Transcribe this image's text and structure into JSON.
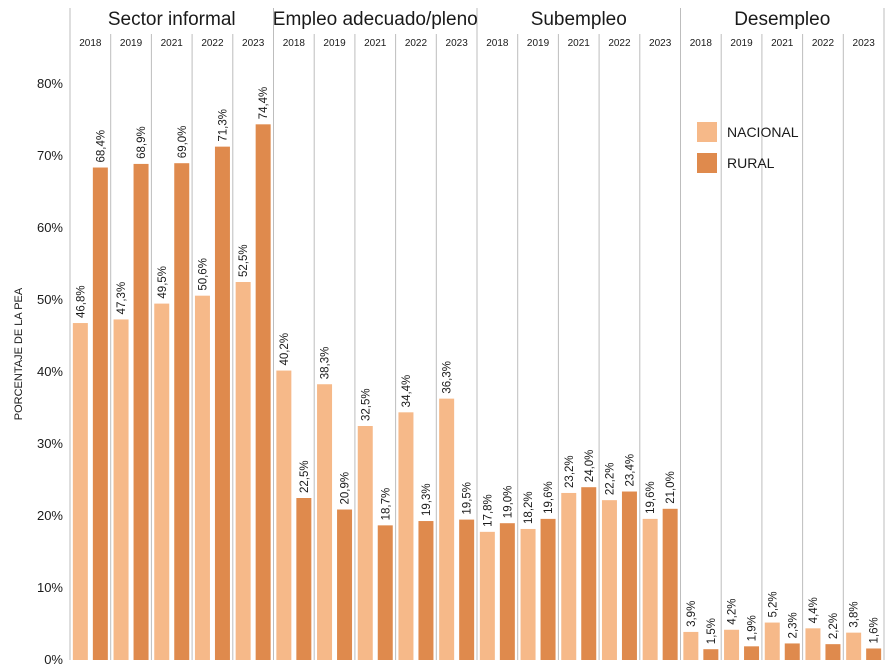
{
  "chart_data": {
    "type": "bar",
    "ylabel": "PORCENTAJE DE LA PEA",
    "ylim": [
      0,
      80
    ],
    "yticks": [
      "0%",
      "10%",
      "20%",
      "30%",
      "40%",
      "50%",
      "60%",
      "70%",
      "80%"
    ],
    "legend": {
      "position": "top-right",
      "items": [
        {
          "name": "NACIONAL",
          "color": "#f6b989"
        },
        {
          "name": "RURAL",
          "color": "#df8a4d"
        }
      ]
    },
    "groups": [
      {
        "title": "Sector informal",
        "years": [
          "2018",
          "2019",
          "2021",
          "2022",
          "2023"
        ],
        "nacional": [
          46.8,
          47.3,
          49.5,
          50.6,
          52.5
        ],
        "rural": [
          68.4,
          68.9,
          69.0,
          71.3,
          74.4
        ],
        "nacional_labels": [
          "46,8%",
          "47,3%",
          "49,5%",
          "50,6%",
          "52,5%"
        ],
        "rural_labels": [
          "68,4%",
          "68,9%",
          "69,0%",
          "71,3%",
          "74,4%"
        ]
      },
      {
        "title": "Empleo adecuado/pleno",
        "years": [
          "2018",
          "2019",
          "2021",
          "2022",
          "2023"
        ],
        "nacional": [
          40.2,
          38.3,
          32.5,
          34.4,
          36.3
        ],
        "rural": [
          22.5,
          20.9,
          18.7,
          19.3,
          19.5
        ],
        "nacional_labels": [
          "40,2%",
          "38,3%",
          "32,5%",
          "34,4%",
          "36,3%"
        ],
        "rural_labels": [
          "22,5%",
          "20,9%",
          "18,7%",
          "19,3%",
          "19,5%"
        ]
      },
      {
        "title": "Subempleo",
        "years": [
          "2018",
          "2019",
          "2021",
          "2022",
          "2023"
        ],
        "nacional": [
          17.8,
          18.2,
          23.2,
          22.2,
          19.6
        ],
        "rural": [
          19.0,
          19.6,
          24.0,
          23.4,
          21.0
        ],
        "nacional_labels": [
          "17,8%",
          "18,2%",
          "23,2%",
          "22,2%",
          "19,6%"
        ],
        "rural_labels": [
          "19,0%",
          "19,6%",
          "24,0%",
          "23,4%",
          "21,0%"
        ]
      },
      {
        "title": "Desempleo",
        "years": [
          "2018",
          "2019",
          "2021",
          "2022",
          "2023"
        ],
        "nacional": [
          3.9,
          4.2,
          5.2,
          4.4,
          3.8
        ],
        "rural": [
          1.5,
          1.9,
          2.3,
          2.2,
          1.6
        ],
        "nacional_labels": [
          "3,9%",
          "4,2%",
          "5,2%",
          "4,4%",
          "3,8%"
        ],
        "rural_labels": [
          "1,5%",
          "1,9%",
          "2,3%",
          "2,2%",
          "1,6%"
        ]
      }
    ]
  }
}
